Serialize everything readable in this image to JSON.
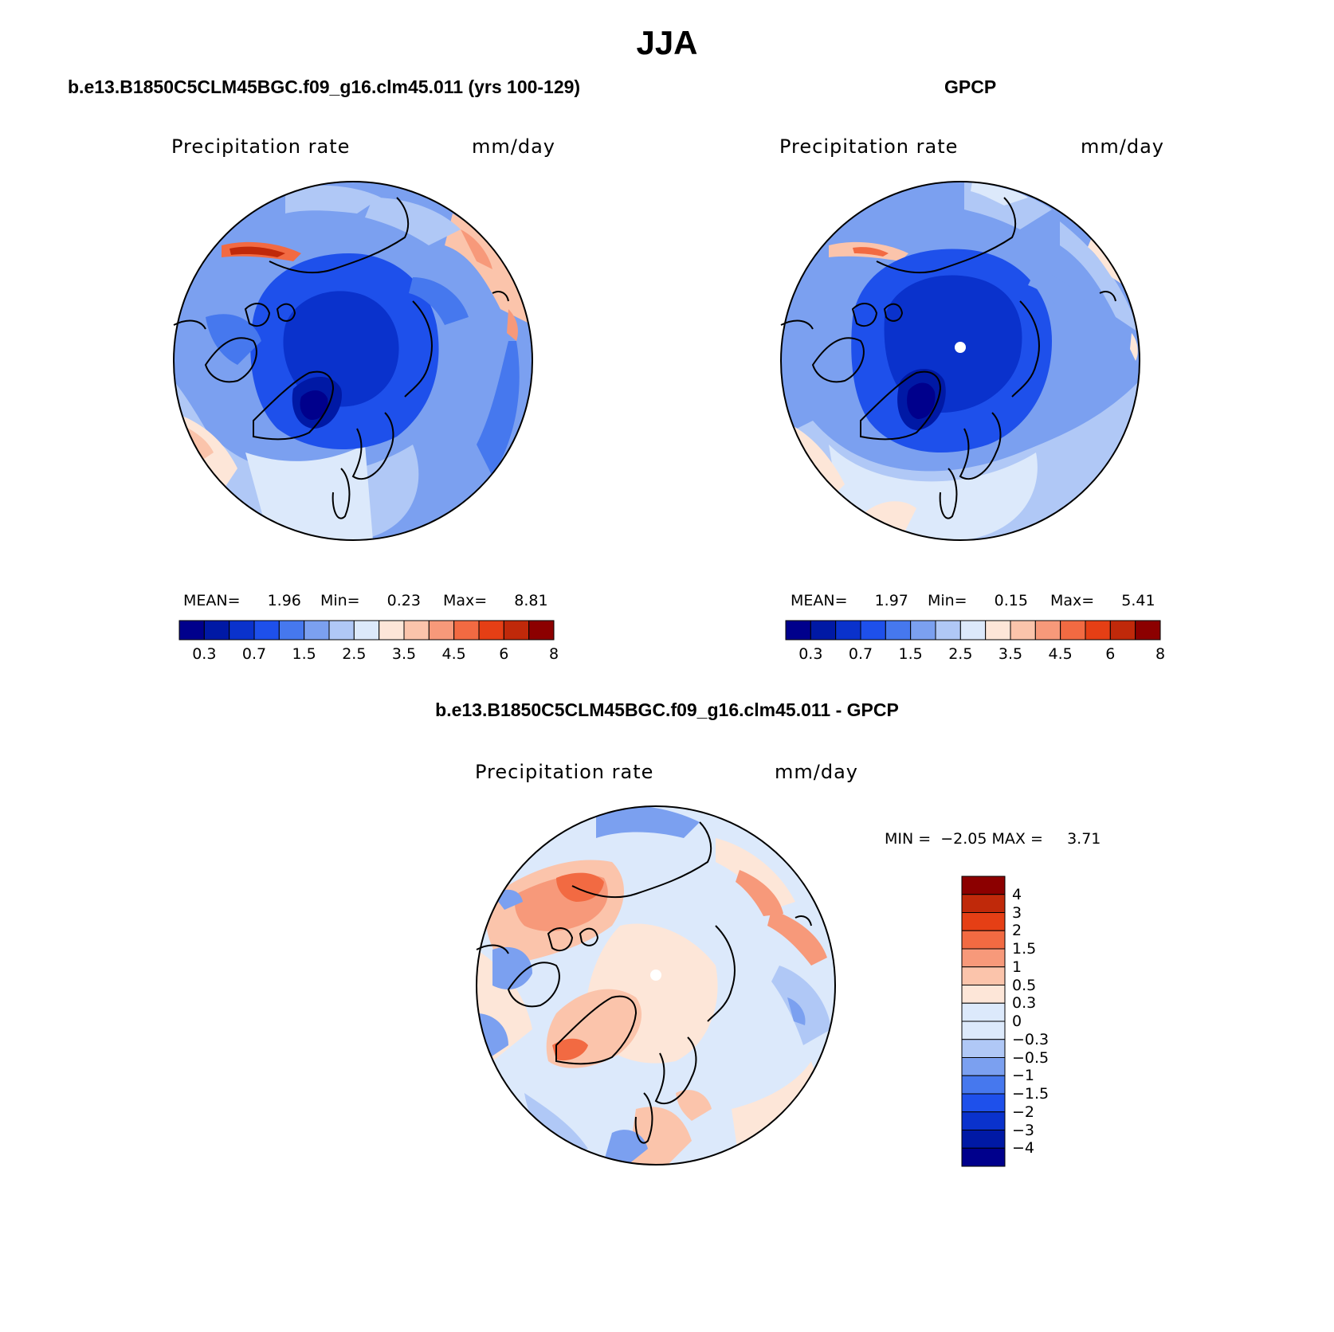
{
  "figure": {
    "season_title": "JJA"
  },
  "panels": {
    "model": {
      "case_title": "b.e13.B1850C5CLM45BGC.f09_g16.clm45.011 (yrs 100-129)",
      "variable_label": "Precipitation rate",
      "units_label": "mm/day",
      "stats": {
        "mean_label": "MEAN=",
        "mean": "1.96",
        "min_label": "Min=",
        "min": "0.23",
        "max_label": "Max=",
        "max": "8.81"
      }
    },
    "obs": {
      "case_title": "GPCP",
      "variable_label": "Precipitation rate",
      "units_label": "mm/day",
      "stats": {
        "mean_label": "MEAN=",
        "mean": "1.97",
        "min_label": "Min=",
        "min": "0.15",
        "max_label": "Max=",
        "max": "5.41"
      }
    },
    "diff": {
      "case_title": "b.e13.B1850C5CLM45BGC.f09_g16.clm45.011 - GPCP",
      "variable_label": "Precipitation rate",
      "units_label": "mm/day",
      "stats_text": "MIN =  −2.05 MAX =     3.71"
    }
  },
  "colorbars": {
    "field": {
      "colors": [
        "#00008c",
        "#0019a5",
        "#0a32cc",
        "#1e50eb",
        "#4678ee",
        "#7ba0f0",
        "#b0c8f6",
        "#dce9fb",
        "#fde6d8",
        "#fbc4ab",
        "#f7997a",
        "#f26a42",
        "#e53f15",
        "#c0290a",
        "#8c0000"
      ],
      "tick_labels": [
        "0.3",
        "0.7",
        "1.5",
        "2.5",
        "3.5",
        "4.5",
        "6",
        "8"
      ]
    },
    "diff": {
      "colors": [
        "#8c0000",
        "#c0290a",
        "#e53f15",
        "#f26a42",
        "#f7997a",
        "#fbc4ab",
        "#fde6d8",
        "#dce9fb",
        "#b0c8f6",
        "#7ba0f0",
        "#4678ee",
        "#1e50eb",
        "#0a32cc",
        "#0019a5",
        "#00008c"
      ],
      "tick_labels": [
        "4",
        "3",
        "2",
        "1.5",
        "1",
        "0.5",
        "0.3",
        "0",
        "−0.3",
        "−0.5",
        "−1",
        "−1.5",
        "−2",
        "−3",
        "−4"
      ]
    }
  }
}
